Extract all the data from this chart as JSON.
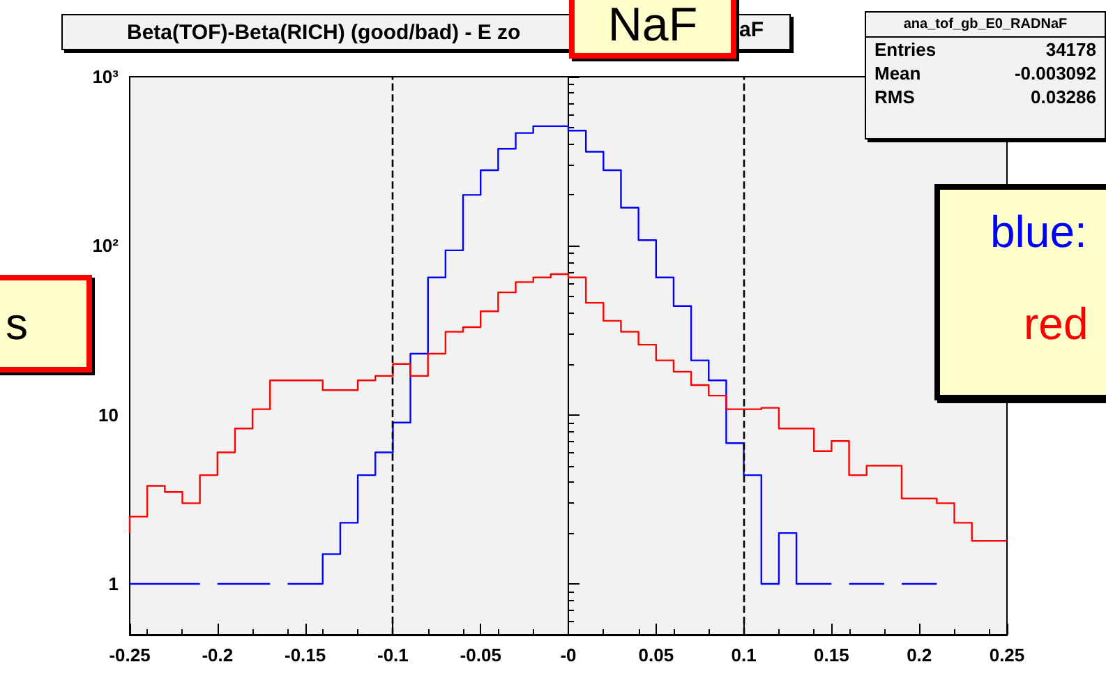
{
  "chart_data": {
    "type": "step",
    "title": "Beta(TOF)-Beta(RICH) (good/bad) - E zo",
    "x": [
      -0.25,
      -0.24,
      -0.23,
      -0.22,
      -0.21,
      -0.2,
      -0.19,
      -0.18,
      -0.17,
      -0.16,
      -0.15,
      -0.14,
      -0.13,
      -0.12,
      -0.11,
      -0.1,
      -0.09,
      -0.08,
      -0.07,
      -0.06,
      -0.05,
      -0.04,
      -0.03,
      -0.02,
      -0.01,
      0,
      0.01,
      0.02,
      0.03,
      0.04,
      0.05,
      0.06,
      0.07,
      0.08,
      0.09,
      0.1,
      0.11,
      0.12,
      0.13,
      0.14,
      0.15,
      0.16,
      0.17,
      0.18,
      0.19,
      0.2,
      0.21,
      0.22,
      0.23,
      0.24,
      0.25
    ],
    "series": [
      {
        "color": "#0000ff",
        "values": [
          1,
          1,
          1,
          1,
          1,
          null,
          1,
          1,
          1,
          null,
          1,
          1,
          1.5,
          2.3,
          4.4,
          6,
          9,
          23,
          65,
          94,
          200,
          280,
          375,
          465,
          510,
          510,
          480,
          360,
          280,
          168,
          108,
          65,
          44,
          21,
          16,
          6.8,
          4.4,
          1,
          2,
          1,
          1,
          null,
          1,
          1,
          null,
          1,
          1,
          null,
          null,
          null,
          null
        ]
      },
      {
        "color": "#ff0000",
        "values": [
          2,
          2.5,
          3.8,
          3.5,
          3,
          4.4,
          6,
          8.3,
          10.8,
          16,
          16,
          16,
          14,
          14,
          16,
          17,
          20,
          17,
          23,
          31,
          33,
          41,
          53,
          61,
          65,
          68,
          65,
          46,
          36,
          31,
          26,
          21,
          18,
          15,
          13,
          10.8,
          10.8,
          11,
          8.3,
          8.3,
          6.1,
          7,
          4.4,
          5,
          5,
          3.2,
          3.2,
          3,
          2.3,
          1.8,
          1.8
        ]
      }
    ],
    "xlim": [
      -0.25,
      0.25
    ],
    "xticks": [
      -0.25,
      -0.2,
      -0.15,
      -0.1,
      -0.05,
      {
        "value": 0,
        "label": "-0"
      },
      0.05,
      0.1,
      0.15,
      0.2,
      0.25
    ],
    "ylim": [
      0.5,
      1000
    ],
    "yticks": [
      1,
      10,
      {
        "value": 100,
        "label": "10²"
      },
      {
        "value": 1000,
        "label": "10³"
      }
    ],
    "log": "y",
    "grid": false,
    "ref_lines": [
      {
        "axis": "x",
        "value": -0.1,
        "color": "#000000",
        "line_style": "dashed"
      },
      {
        "axis": "x",
        "value": 0.1,
        "color": "#000000",
        "line_style": "dashed"
      }
    ],
    "annotations": [
      "ana_tof_gb_E0_RADNaF",
      "Entries 34178",
      "Mean -0.003092",
      "RMS 0.03286",
      "NaF",
      "aF",
      "s",
      "blue:",
      "red"
    ]
  }
}
